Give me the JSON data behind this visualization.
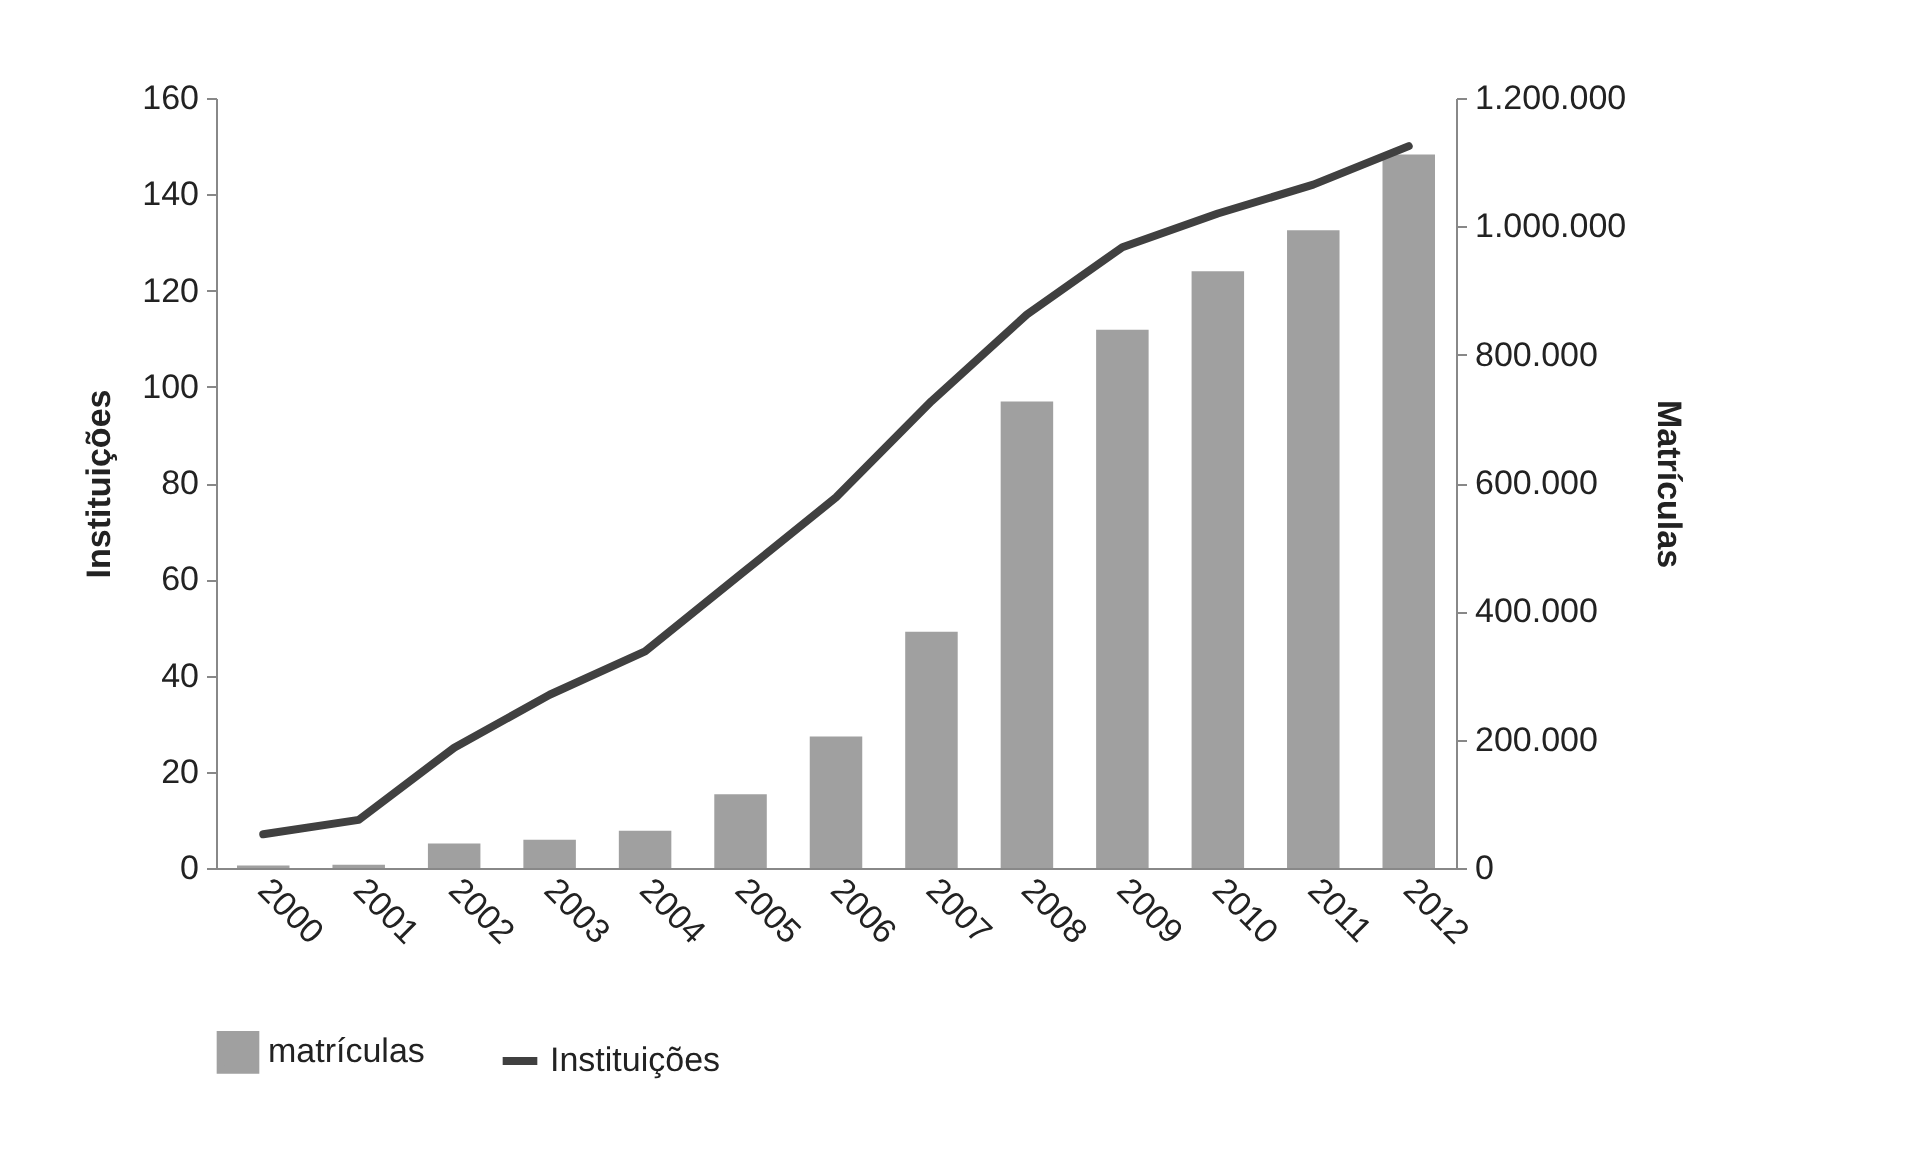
{
  "chart_data": {
    "type": "bar",
    "categories": [
      "2000",
      "2001",
      "2002",
      "2003",
      "2004",
      "2005",
      "2006",
      "2007",
      "2008",
      "2009",
      "2010",
      "2011",
      "2012"
    ],
    "series": [
      {
        "name": "matrículas",
        "axis": "y2",
        "color": "#a0a0a0",
        "values": [
          4000,
          5000,
          38000,
          44000,
          58000,
          115000,
          205000,
          368000,
          727000,
          839000,
          930000,
          994000,
          1112000
        ]
      },
      {
        "name": "Instituições",
        "type": "line",
        "color": "#404040",
        "values": [
          7,
          10,
          25,
          36,
          45,
          61,
          77,
          97,
          115,
          129,
          136,
          142,
          150
        ]
      }
    ],
    "ylabel": "Instituições",
    "y2label": "Matrículas",
    "ylim": [
      0,
      160
    ],
    "yticks": [
      0,
      20,
      40,
      60,
      80,
      100,
      120,
      140,
      160
    ],
    "y2lim": [
      0,
      1200000
    ],
    "y2ticks": [
      0,
      {
        "value": 200000,
        "label": "200.000"
      },
      {
        "value": 400000,
        "label": "400.000"
      },
      {
        "value": 600000,
        "label": "600.000"
      },
      {
        "value": 800000,
        "label": "800.000"
      },
      {
        "value": 1000000,
        "label": "1.000.000"
      },
      {
        "value": 1200000,
        "label": "1.200.000"
      }
    ],
    "grid": false,
    "legend": "bottom",
    "line_style": "solid",
    "marker": "none"
  }
}
